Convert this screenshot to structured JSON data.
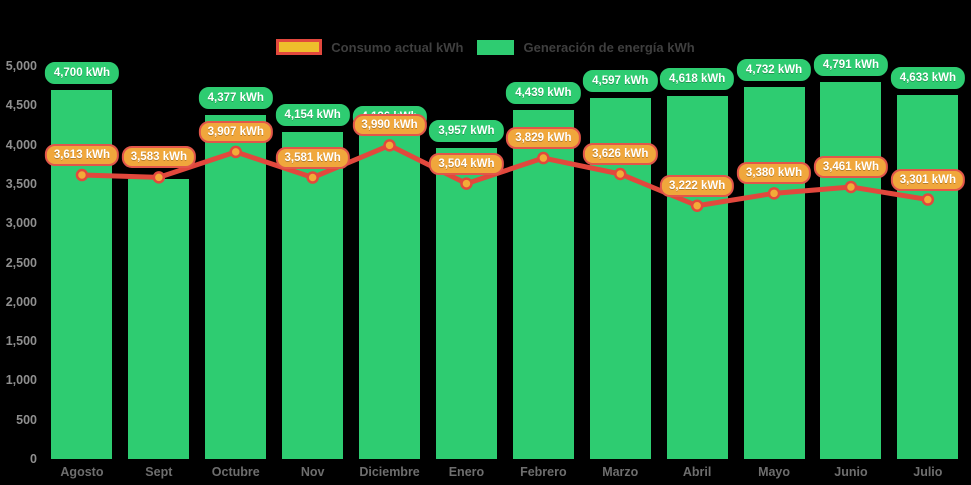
{
  "chart_data": {
    "type": "bar",
    "subtype": "bar-with-line-overlay",
    "title": "",
    "categories": [
      "Agosto",
      "Sept",
      "Octubre",
      "Nov",
      "Diciembre",
      "Enero",
      "Febrero",
      "Marzo",
      "Abril",
      "Mayo",
      "Junio",
      "Julio"
    ],
    "series": [
      {
        "name": "Consumo actual kWh",
        "type": "line",
        "values": [
          3613,
          3583,
          3907,
          3581,
          3990,
          3504,
          3829,
          3626,
          3222,
          3380,
          3461,
          3301
        ],
        "labels": [
          "3,613 kWh",
          "3,583 kWh",
          "3,907 kWh",
          "3,581 kWh",
          "3,990 kWh",
          "3,504 kWh",
          "3,829 kWh",
          "3,626 kWh",
          "3,222 kWh",
          "3,380 kWh",
          "3,461 kWh",
          "3,301 kWh"
        ]
      },
      {
        "name": "Generación de energía kWh",
        "type": "bar",
        "values": [
          4700,
          3565,
          4377,
          4154,
          4136,
          3957,
          4439,
          4597,
          4618,
          4732,
          4791,
          4633
        ],
        "labels": [
          "4,700 kWh",
          null,
          "4,377 kWh",
          "4,154 kWh",
          "4,136 kWh",
          "3,957 kWh",
          "4,439 kWh",
          "4,597 kWh",
          "4,618 kWh",
          "4,732 kWh",
          "4,791 kWh",
          "4,633 kWh"
        ]
      }
    ],
    "ylim": [
      0,
      5000
    ],
    "yticks": [
      {
        "label": "5,000",
        "value": 5000
      },
      {
        "label": "4,500",
        "value": 4500
      },
      {
        "label": "4,000",
        "value": 4000
      },
      {
        "label": "3,500",
        "value": 3500
      },
      {
        "label": "3,000",
        "value": 3000
      },
      {
        "label": "2,500",
        "value": 2500
      },
      {
        "label": "2,000",
        "value": 2000
      },
      {
        "label": "1,500",
        "value": 1500
      },
      {
        "label": "1,000",
        "value": 1000
      },
      {
        "label": "500",
        "value": 500
      },
      {
        "label": "0",
        "value": 0
      }
    ],
    "grid": false,
    "legend_position": "top-center",
    "colors": {
      "background": "#000000",
      "bar": "#2ecc71",
      "bar_label_bg": "#2ecc71",
      "line": "#e2483d",
      "marker_fill": "#f2ab38",
      "marker_border": "#e2483d",
      "consumption_label_bg": "#f0a73c",
      "consumption_label_border": "#e2564a",
      "legend_consumo_fill": "#eebe2c",
      "legend_consumo_border": "#e2483d",
      "legend_text": "#3f3f3f",
      "axis_text": "#8f8f8f",
      "month_text": "#6e6e6e"
    }
  }
}
